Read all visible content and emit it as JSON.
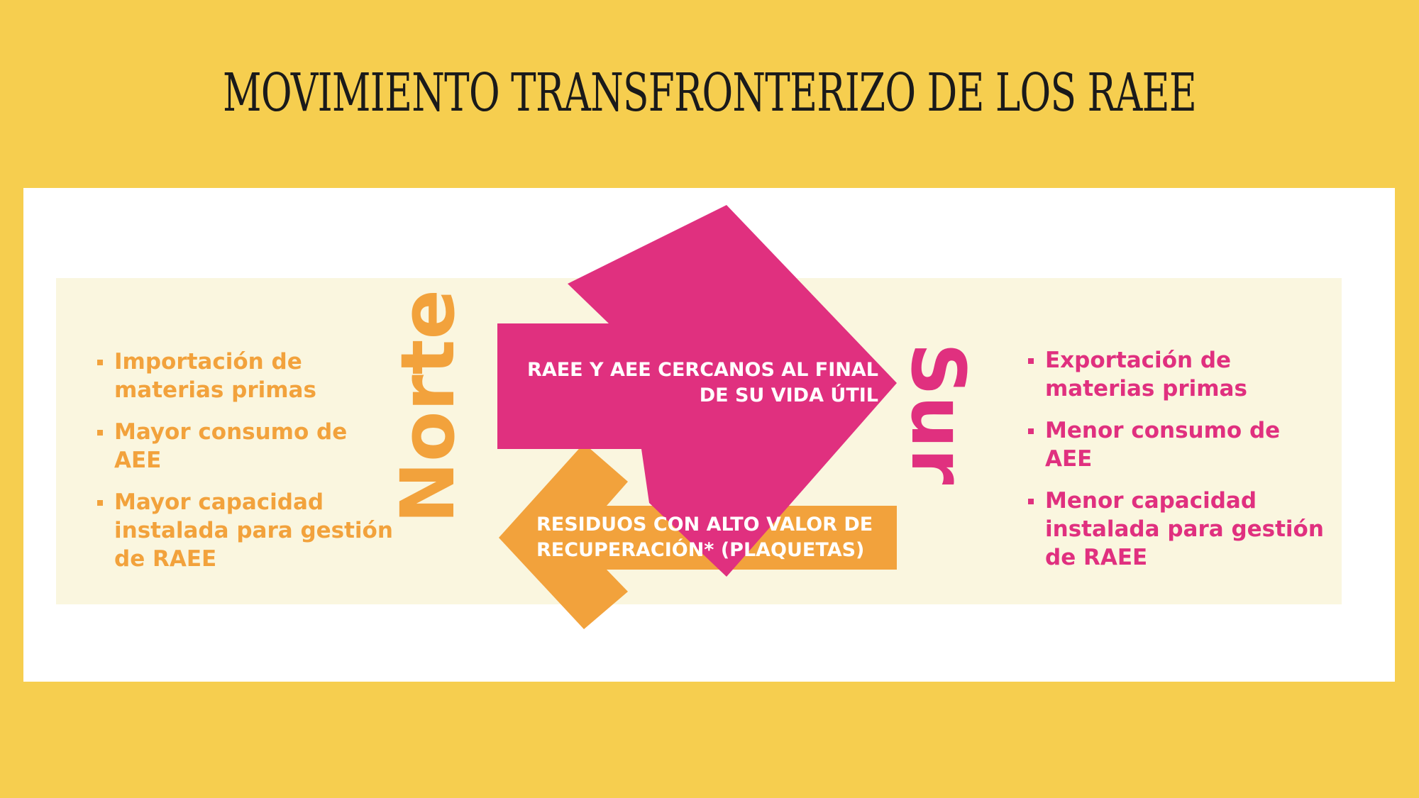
{
  "title": "MOVIMIENTO TRANSFRONTERIZO DE LOS RAEE",
  "norte": {
    "label": "Norte",
    "items": [
      "Importación de materias primas",
      "Mayor consumo de AEE",
      "Mayor capacidad instalada para gestión de RAEE"
    ]
  },
  "sur": {
    "label": "Sur",
    "items": [
      "Exportación de materias primas",
      "Menor consumo de AEE",
      "Menor capacidad instalada para gestión de RAEE"
    ]
  },
  "arrow_to_sur": {
    "line1": "RAEE Y AEE CERCANOS AL FINAL",
    "line2": "DE SU VIDA ÚTIL"
  },
  "arrow_to_norte": {
    "line1": "RESIDUOS CON ALTO VALOR DE",
    "line2": "RECUPERACIÓN* (PLAQUETAS)"
  },
  "colors": {
    "background": "#F6CE4F",
    "band": "#FAF6DF",
    "norte_orange": "#F2A23C",
    "sur_pink": "#E0307F"
  }
}
